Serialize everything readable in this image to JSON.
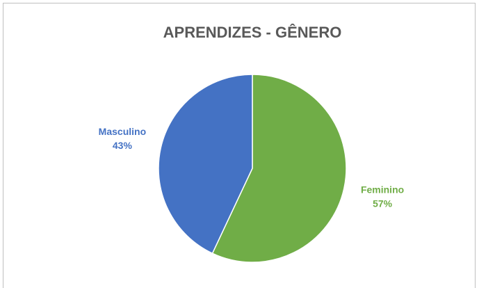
{
  "chart_data": {
    "type": "pie",
    "title": "APRENDIZES - GÊNERO",
    "categories": [
      "Feminino",
      "Masculino"
    ],
    "values": [
      57,
      43
    ],
    "value_labels": [
      "57%",
      "43%"
    ],
    "colors": [
      "#70ad47",
      "#4472c4"
    ]
  }
}
